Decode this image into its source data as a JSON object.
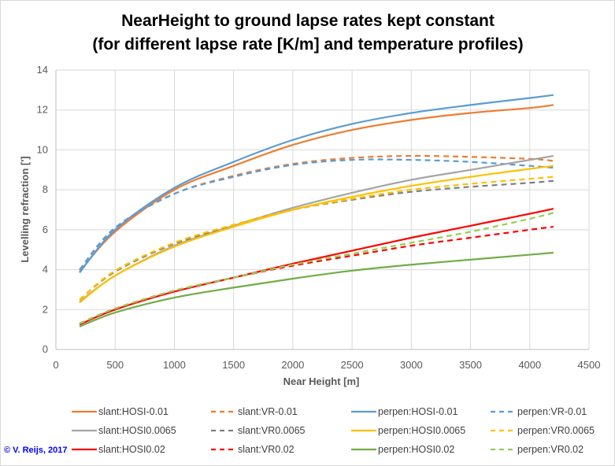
{
  "chart_data": {
    "type": "line",
    "title": [
      "NearHeight to ground lapse rates kept constant",
      "(for different lapse rate [K/m] and temperature profiles)"
    ],
    "xlabel": "Near Height [m]",
    "ylabel": "Levelling refraction [']",
    "xlim": [
      0,
      4500
    ],
    "ylim": [
      0,
      14
    ],
    "xticks": [
      0,
      500,
      1000,
      1500,
      2000,
      2500,
      3000,
      3500,
      4000,
      4500
    ],
    "yticks": [
      0,
      2,
      4,
      6,
      8,
      10,
      12,
      14
    ],
    "grid": true,
    "legend_position": "bottom",
    "x": [
      200,
      500,
      1000,
      1500,
      2000,
      2500,
      3000,
      3500,
      4000,
      4200
    ],
    "series": [
      {
        "name": "slant:HOSI-0.01",
        "color": "#ED7D31",
        "dash": false,
        "values": [
          3.9,
          5.9,
          8.0,
          9.2,
          10.25,
          11.0,
          11.5,
          11.85,
          12.1,
          12.25
        ]
      },
      {
        "name": "slant:VR-0.01",
        "color": "#ED7D31",
        "dash": true,
        "values": [
          4.0,
          6.1,
          7.8,
          8.7,
          9.3,
          9.6,
          9.7,
          9.65,
          9.55,
          9.45
        ]
      },
      {
        "name": "perpen:HOSI-0.01",
        "color": "#5B9BD5",
        "dash": false,
        "values": [
          3.85,
          6.0,
          8.1,
          9.4,
          10.5,
          11.3,
          11.85,
          12.25,
          12.6,
          12.75
        ]
      },
      {
        "name": "perpen:VR-0.01",
        "color": "#5B9BD5",
        "dash": true,
        "values": [
          4.0,
          6.1,
          7.8,
          8.65,
          9.25,
          9.5,
          9.5,
          9.4,
          9.2,
          9.1
        ]
      },
      {
        "name": "slant:HOSI0.0065",
        "color": "#A5A5A5",
        "dash": false,
        "values": [
          2.4,
          3.7,
          5.2,
          6.2,
          7.1,
          7.85,
          8.5,
          9.0,
          9.5,
          9.7
        ]
      },
      {
        "name": "slant:VR0.0065",
        "color": "#7F7F7F",
        "dash": true,
        "values": [
          2.5,
          3.9,
          5.3,
          6.2,
          7.0,
          7.5,
          7.9,
          8.15,
          8.35,
          8.45
        ]
      },
      {
        "name": "perpen:HOSI0.0065",
        "color": "#FFC000",
        "dash": false,
        "values": [
          2.35,
          3.7,
          5.15,
          6.15,
          7.0,
          7.65,
          8.2,
          8.65,
          9.05,
          9.2
        ]
      },
      {
        "name": "perpen:VR0.0065",
        "color": "#FFC000",
        "dash": true,
        "values": [
          2.5,
          3.95,
          5.35,
          6.25,
          7.0,
          7.55,
          8.0,
          8.3,
          8.55,
          8.65
        ]
      },
      {
        "name": "slant:HOSI0.02",
        "color": "#FF0000",
        "dash": false,
        "values": [
          1.25,
          2.0,
          2.9,
          3.6,
          4.3,
          4.95,
          5.6,
          6.2,
          6.8,
          7.05
        ]
      },
      {
        "name": "slant:VR0.02",
        "color": "#FF0000",
        "dash": true,
        "values": [
          1.3,
          2.05,
          2.95,
          3.6,
          4.2,
          4.7,
          5.2,
          5.6,
          6.0,
          6.15
        ]
      },
      {
        "name": "perpen:HOSI0.02",
        "color": "#70AD47",
        "dash": false,
        "values": [
          1.15,
          1.85,
          2.6,
          3.1,
          3.55,
          3.95,
          4.25,
          4.5,
          4.75,
          4.85
        ]
      },
      {
        "name": "perpen:VR0.02",
        "color": "#92D050",
        "dash": true,
        "values": [
          1.3,
          2.05,
          2.95,
          3.6,
          4.25,
          4.8,
          5.35,
          5.9,
          6.55,
          6.85
        ]
      }
    ]
  },
  "copyright": "© V. Reijs, 2017"
}
